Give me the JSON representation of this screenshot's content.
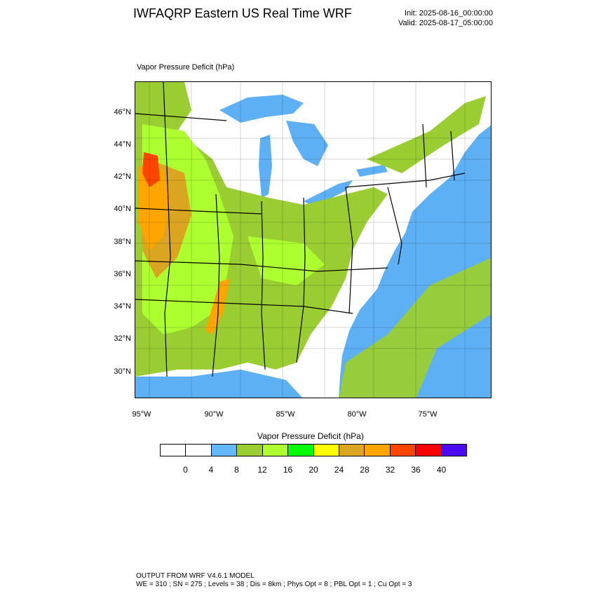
{
  "header": {
    "title": "IWFAQRP Eastern US Real Time WRF",
    "init": "Init: 2025-08-16_00:00:00",
    "valid": "Valid: 2025-08-17_05:00:00"
  },
  "field_label": "Vapor Pressure Deficit   (hPa)",
  "map": {
    "lat_labels": [
      "46°N",
      "44°N",
      "42°N",
      "40°N",
      "38°N",
      "36°N",
      "34°N",
      "32°N",
      "30°N"
    ],
    "lon_labels": [
      "95°W",
      "90°W",
      "85°W",
      "80°W",
      "75°W"
    ],
    "colors": {
      "ocean": "#5eb0f5",
      "land_low": "#ffffff",
      "green_dark": "#9acd32",
      "green_light": "#adff2f",
      "orange": "#ffa500",
      "red_orange": "#ff4500",
      "tan": "#daa520"
    }
  },
  "colorbar": {
    "title": "Vapor Pressure Deficit  (hPa)",
    "colors": [
      "#ffffff",
      "#ffffff",
      "#63b8ff",
      "#9acd32",
      "#adff2f",
      "#00ff00",
      "#ffff00",
      "#daa520",
      "#ffa500",
      "#ff4500",
      "#ff0000",
      "#4b0bf0"
    ],
    "labels": [
      "0",
      "4",
      "8",
      "12",
      "16",
      "20",
      "24",
      "28",
      "32",
      "36",
      "40"
    ]
  },
  "footer": {
    "line1": "OUTPUT FROM WRF V4.6.1 MODEL",
    "line2": "WE = 310 ; SN = 275 ; Levels = 38 ; Dis = 8km ; Phys Opt = 8 ; PBL Opt = 1 ; Cu Opt = 3"
  }
}
